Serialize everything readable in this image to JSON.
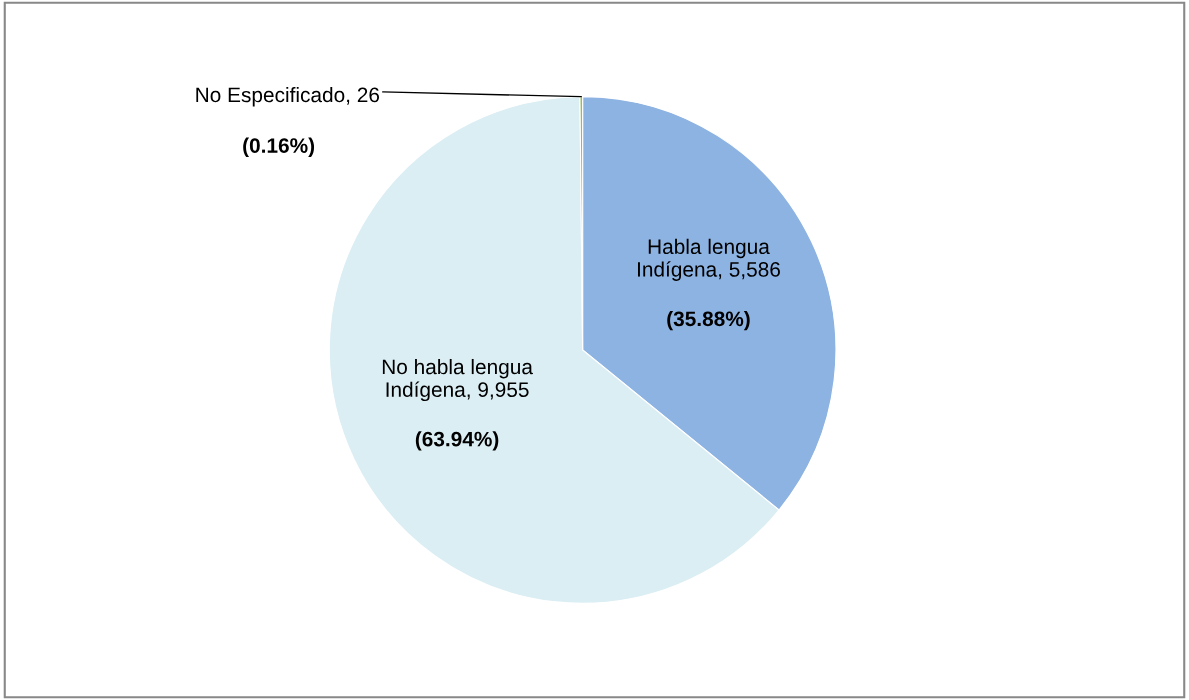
{
  "chart_data": {
    "type": "pie",
    "categories": [
      "Habla lengua\nIndígena",
      "No habla lengua\nIndígena",
      "No Especificado"
    ],
    "values": [
      5586,
      9955,
      26
    ],
    "colors": [
      "#8db3e2",
      "#dbeef4",
      "#9bbb59"
    ],
    "value_labels": [
      "5,586",
      "9,955",
      "26"
    ],
    "annotations": [
      "(35.88%)",
      "(63.94%)",
      "(0.16%)"
    ],
    "legend": false
  }
}
